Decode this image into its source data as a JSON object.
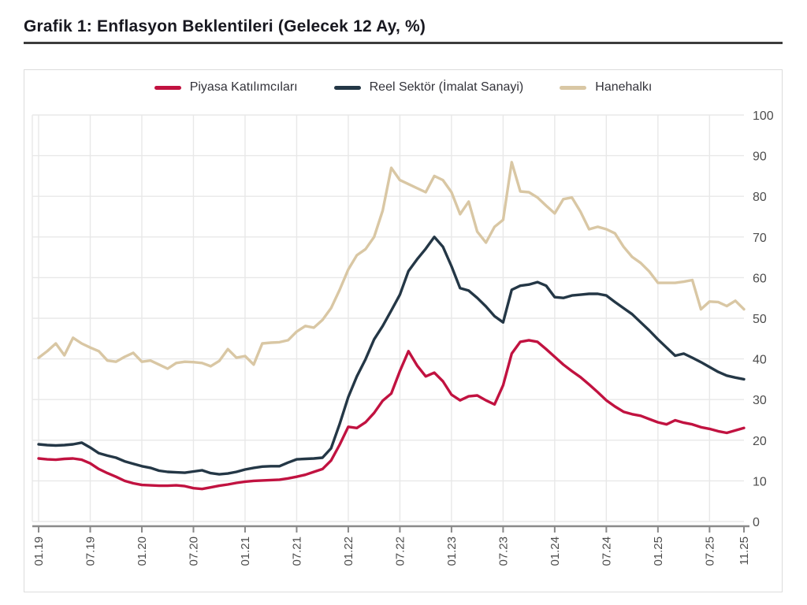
{
  "page": {
    "title": "Grafik 1: Enflasyon Beklentileri (Gelecek 12 Ay, %)"
  },
  "chart_data": {
    "type": "line",
    "title": "Grafik 1: Enflasyon Beklentileri (Gelecek 12 Ay, %)",
    "x_unit": "month",
    "x_range": [
      "01.19",
      "11.25"
    ],
    "x_tick_labels": [
      "01.19",
      "07.19",
      "01.20",
      "07.20",
      "01.21",
      "07.21",
      "01.22",
      "07.22",
      "01.23",
      "07.23",
      "01.24",
      "07.24",
      "01.25",
      "07.25",
      "11.25"
    ],
    "x_tick_month_index": [
      0,
      6,
      12,
      18,
      24,
      30,
      36,
      42,
      48,
      54,
      60,
      66,
      72,
      78,
      82
    ],
    "y_ticks": [
      0,
      10,
      20,
      30,
      40,
      50,
      60,
      70,
      80,
      90,
      100
    ],
    "ylim": [
      0,
      100
    ],
    "grid": true,
    "legend_position": "top",
    "colors": {
      "grid": "#e8e8e8",
      "axis": "#8a8a8a",
      "tick_label": "#4d4d4d",
      "title_underline": "#3c3c3c"
    },
    "series": [
      {
        "name": "Piyasa Katılımcıları",
        "color": "#c11240",
        "values": [
          15.5,
          15.3,
          15.2,
          15.4,
          15.5,
          15.2,
          14.3,
          12.9,
          11.9,
          11.0,
          10.0,
          9.4,
          9.0,
          8.9,
          8.8,
          8.8,
          8.9,
          8.7,
          8.2,
          8.0,
          8.4,
          8.8,
          9.1,
          9.5,
          9.8,
          10.0,
          10.1,
          10.2,
          10.3,
          10.6,
          11.0,
          11.5,
          12.2,
          12.9,
          15.0,
          18.9,
          23.3,
          23.0,
          24.4,
          26.7,
          29.7,
          31.5,
          37.0,
          41.9,
          38.4,
          35.7,
          36.6,
          34.5,
          31.2,
          29.8,
          30.8,
          31.0,
          29.8,
          28.8,
          33.5,
          41.3,
          44.2,
          44.6,
          44.2,
          42.4,
          40.5,
          38.6,
          37.0,
          35.5,
          33.7,
          31.8,
          29.8,
          28.3,
          27.0,
          26.4,
          26.0,
          25.2,
          24.4,
          23.9,
          24.9,
          24.3,
          23.9,
          23.2,
          22.8,
          22.2,
          21.8,
          22.4,
          23.0
        ]
      },
      {
        "name": "Reel Sektör (İmalat Sanayi)",
        "color": "#243746",
        "values": [
          19.0,
          18.8,
          18.7,
          18.8,
          19.0,
          19.4,
          18.2,
          16.8,
          16.2,
          15.7,
          14.8,
          14.2,
          13.6,
          13.2,
          12.5,
          12.2,
          12.1,
          12.0,
          12.3,
          12.6,
          11.9,
          11.6,
          11.8,
          12.2,
          12.8,
          13.2,
          13.5,
          13.6,
          13.6,
          14.5,
          15.3,
          15.4,
          15.5,
          15.7,
          18.0,
          24.0,
          30.6,
          35.7,
          39.9,
          44.8,
          48.1,
          51.9,
          55.8,
          61.6,
          64.5,
          67.1,
          70.0,
          67.6,
          62.8,
          57.4,
          56.8,
          55.0,
          52.9,
          50.5,
          49.0,
          57.0,
          58.0,
          58.3,
          58.9,
          58.0,
          55.2,
          55.0,
          55.6,
          55.8,
          56.0,
          56.0,
          55.6,
          54.0,
          52.5,
          51.0,
          49.0,
          47.0,
          44.8,
          42.8,
          40.8,
          41.3,
          40.3,
          39.2,
          38.0,
          36.8,
          35.9,
          35.4,
          35.0
        ]
      },
      {
        "name": "Hanehalkı",
        "color": "#d9c7a4",
        "values": [
          40.3,
          41.9,
          43.8,
          40.9,
          45.2,
          43.8,
          42.8,
          41.9,
          39.6,
          39.3,
          40.5,
          41.5,
          39.3,
          39.6,
          38.6,
          37.6,
          39.0,
          39.3,
          39.2,
          39.0,
          38.2,
          39.5,
          42.4,
          40.3,
          40.7,
          38.6,
          43.8,
          44.0,
          44.1,
          44.6,
          46.7,
          48.1,
          47.7,
          49.6,
          52.5,
          57.0,
          62.0,
          65.5,
          67.0,
          70.0,
          76.5,
          87.0,
          84.0,
          83.0,
          82.0,
          81.0,
          85.0,
          84.0,
          81.0,
          75.6,
          78.7,
          71.3,
          68.6,
          72.5,
          74.2,
          88.4,
          81.2,
          81.0,
          79.7,
          77.7,
          75.8,
          79.3,
          79.7,
          76.2,
          71.9,
          72.5,
          71.9,
          70.9,
          67.6,
          65.1,
          63.6,
          61.5,
          58.7,
          58.7,
          58.7,
          59.0,
          59.4,
          52.2,
          54.1,
          54.0,
          53.0,
          54.3,
          52.2
        ]
      }
    ]
  }
}
